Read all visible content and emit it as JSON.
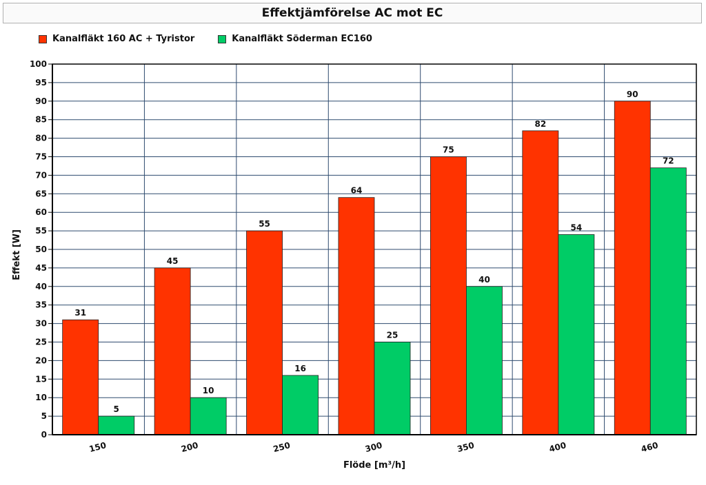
{
  "chart_data": {
    "type": "bar",
    "title": "Effektjämförelse AC mot EC",
    "xlabel": "Flöde [m³/h]",
    "ylabel": "Effekt [W]",
    "categories": [
      "150",
      "200",
      "250",
      "300",
      "350",
      "400",
      "460"
    ],
    "series": [
      {
        "name": "Kanalfläkt 160 AC + Tyristor",
        "color": "#ff3300",
        "values": [
          31,
          45,
          55,
          64,
          75,
          82,
          90
        ]
      },
      {
        "name": "Kanalfläkt Söderman EC160",
        "color": "#00cc66",
        "values": [
          5,
          10,
          16,
          25,
          40,
          54,
          72
        ]
      }
    ],
    "ylim": [
      0,
      100
    ],
    "ytick_step": 5,
    "grid": true,
    "legend_position": "top-left"
  }
}
